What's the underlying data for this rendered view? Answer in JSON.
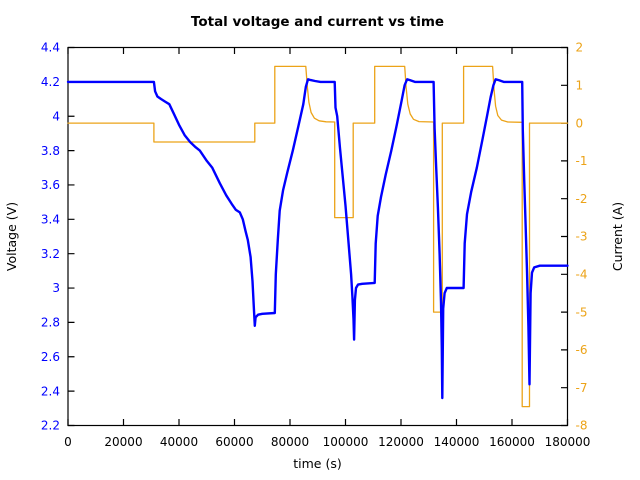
{
  "chart_data": {
    "type": "line",
    "title": "Total voltage and current vs time",
    "xlabel": "time (s)",
    "ylabel": "Voltage (V)",
    "y2label": "Current (A)",
    "xlim": [
      0,
      180000
    ],
    "ylim": [
      2.2,
      4.4
    ],
    "y2lim": [
      -8,
      2
    ],
    "grid": false,
    "legend": "none",
    "xticks": {
      "values": [
        0,
        20000,
        40000,
        60000,
        80000,
        100000,
        120000,
        140000,
        160000,
        180000
      ],
      "labels": [
        "0",
        "20000",
        "40000",
        "60000",
        "80000",
        "100000",
        "120000",
        "140000",
        "160000",
        "180000"
      ]
    },
    "yticks": {
      "values": [
        2.2,
        2.4,
        2.6,
        2.8,
        3.0,
        3.2,
        3.4,
        3.6,
        3.8,
        4.0,
        4.2,
        4.4
      ],
      "labels": [
        "2.2",
        "2.4",
        "2.6",
        "2.8",
        "3",
        "3.2",
        "3.4",
        "3.6",
        "3.8",
        "4",
        "4.2",
        "4.4"
      ],
      "color": "#0000ff"
    },
    "y2ticks": {
      "values": [
        -8,
        -7,
        -6,
        -5,
        -4,
        -3,
        -2,
        -1,
        0,
        1,
        2
      ],
      "labels": [
        "-8",
        "-7",
        "-6",
        "-5",
        "-4",
        "-3",
        "-2",
        "-1",
        "0",
        "1",
        "2"
      ],
      "color": "#eca318"
    },
    "series": [
      {
        "name": "voltage",
        "axis": "y1",
        "color": "#0000ff",
        "points": [
          [
            0,
            4.2
          ],
          [
            30960,
            4.2
          ],
          [
            31400,
            4.145
          ],
          [
            32200,
            4.115
          ],
          [
            33500,
            4.1
          ],
          [
            35000,
            4.085
          ],
          [
            36500,
            4.07
          ],
          [
            38000,
            4.02
          ],
          [
            40000,
            3.95
          ],
          [
            42000,
            3.89
          ],
          [
            44000,
            3.85
          ],
          [
            46000,
            3.82
          ],
          [
            47500,
            3.8
          ],
          [
            50000,
            3.74
          ],
          [
            52000,
            3.7
          ],
          [
            54700,
            3.61
          ],
          [
            57000,
            3.54
          ],
          [
            59000,
            3.49
          ],
          [
            60500,
            3.455
          ],
          [
            61900,
            3.44
          ],
          [
            63000,
            3.4
          ],
          [
            64000,
            3.33
          ],
          [
            64800,
            3.28
          ],
          [
            65800,
            3.18
          ],
          [
            66500,
            3.04
          ],
          [
            67000,
            2.88
          ],
          [
            67320,
            2.78
          ],
          [
            67600,
            2.83
          ],
          [
            68500,
            2.845
          ],
          [
            70000,
            2.85
          ],
          [
            74520,
            2.855
          ],
          [
            74900,
            3.08
          ],
          [
            75600,
            3.28
          ],
          [
            76300,
            3.45
          ],
          [
            77500,
            3.57
          ],
          [
            79000,
            3.67
          ],
          [
            81000,
            3.8
          ],
          [
            83000,
            3.94
          ],
          [
            84800,
            4.07
          ],
          [
            85700,
            4.17
          ],
          [
            86500,
            4.215
          ],
          [
            87500,
            4.21
          ],
          [
            89000,
            4.205
          ],
          [
            91000,
            4.2
          ],
          [
            96120,
            4.2
          ],
          [
            96400,
            4.05
          ],
          [
            97000,
            4.0
          ],
          [
            98000,
            3.82
          ],
          [
            99000,
            3.65
          ],
          [
            100000,
            3.48
          ],
          [
            101000,
            3.28
          ],
          [
            102000,
            3.08
          ],
          [
            102500,
            2.95
          ],
          [
            102900,
            2.82
          ],
          [
            103100,
            2.7
          ],
          [
            103400,
            2.93
          ],
          [
            103800,
            3.0
          ],
          [
            104500,
            3.02
          ],
          [
            106000,
            3.025
          ],
          [
            110520,
            3.03
          ],
          [
            110900,
            3.26
          ],
          [
            111600,
            3.42
          ],
          [
            112800,
            3.53
          ],
          [
            114500,
            3.66
          ],
          [
            116500,
            3.8
          ],
          [
            118500,
            3.95
          ],
          [
            120200,
            4.09
          ],
          [
            121300,
            4.18
          ],
          [
            122200,
            4.215
          ],
          [
            123200,
            4.21
          ],
          [
            125000,
            4.2
          ],
          [
            131760,
            4.2
          ],
          [
            132100,
            3.93
          ],
          [
            132700,
            3.7
          ],
          [
            133300,
            3.47
          ],
          [
            133900,
            3.2
          ],
          [
            134400,
            2.92
          ],
          [
            134700,
            2.65
          ],
          [
            134890,
            2.36
          ],
          [
            135200,
            2.88
          ],
          [
            135700,
            2.97
          ],
          [
            136500,
            3.0
          ],
          [
            138000,
            3.0
          ],
          [
            142560,
            3.0
          ],
          [
            142950,
            3.26
          ],
          [
            143800,
            3.43
          ],
          [
            145300,
            3.56
          ],
          [
            147300,
            3.7
          ],
          [
            149300,
            3.86
          ],
          [
            151000,
            4.0
          ],
          [
            152300,
            4.11
          ],
          [
            153300,
            4.18
          ],
          [
            154100,
            4.215
          ],
          [
            155200,
            4.21
          ],
          [
            157000,
            4.2
          ],
          [
            163690,
            4.2
          ],
          [
            163900,
            3.92
          ],
          [
            164400,
            3.63
          ],
          [
            164900,
            3.37
          ],
          [
            165400,
            3.1
          ],
          [
            165900,
            2.78
          ],
          [
            166320,
            2.44
          ],
          [
            166700,
            2.97
          ],
          [
            167200,
            3.09
          ],
          [
            168000,
            3.12
          ],
          [
            170000,
            3.13
          ],
          [
            180000,
            3.13
          ]
        ]
      },
      {
        "name": "current",
        "axis": "y2",
        "color": "#eca318",
        "points": [
          [
            0,
            0
          ],
          [
            30960,
            0
          ],
          [
            30960,
            -0.5
          ],
          [
            67320,
            -0.5
          ],
          [
            67320,
            0
          ],
          [
            74520,
            0
          ],
          [
            74520,
            1.5
          ],
          [
            85680,
            1.5
          ],
          [
            86200,
            1.0
          ],
          [
            86800,
            0.55
          ],
          [
            87600,
            0.28
          ],
          [
            88800,
            0.13
          ],
          [
            90500,
            0.06
          ],
          [
            93000,
            0.035
          ],
          [
            96120,
            0.03
          ],
          [
            96120,
            -2.5
          ],
          [
            102780,
            -2.5
          ],
          [
            102780,
            0
          ],
          [
            110520,
            0
          ],
          [
            110520,
            1.5
          ],
          [
            121320,
            1.5
          ],
          [
            121850,
            0.95
          ],
          [
            122450,
            0.5
          ],
          [
            123300,
            0.24
          ],
          [
            124500,
            0.1
          ],
          [
            126500,
            0.04
          ],
          [
            131760,
            0.03
          ],
          [
            131760,
            -5
          ],
          [
            134890,
            -5
          ],
          [
            134890,
            0
          ],
          [
            142560,
            0
          ],
          [
            142560,
            1.5
          ],
          [
            153000,
            1.5
          ],
          [
            153500,
            0.9
          ],
          [
            154100,
            0.45
          ],
          [
            154900,
            0.2
          ],
          [
            156200,
            0.08
          ],
          [
            158500,
            0.03
          ],
          [
            163690,
            0.02
          ],
          [
            163690,
            -7.5
          ],
          [
            166320,
            -7.5
          ],
          [
            166320,
            0
          ],
          [
            180000,
            0
          ]
        ]
      }
    ]
  }
}
